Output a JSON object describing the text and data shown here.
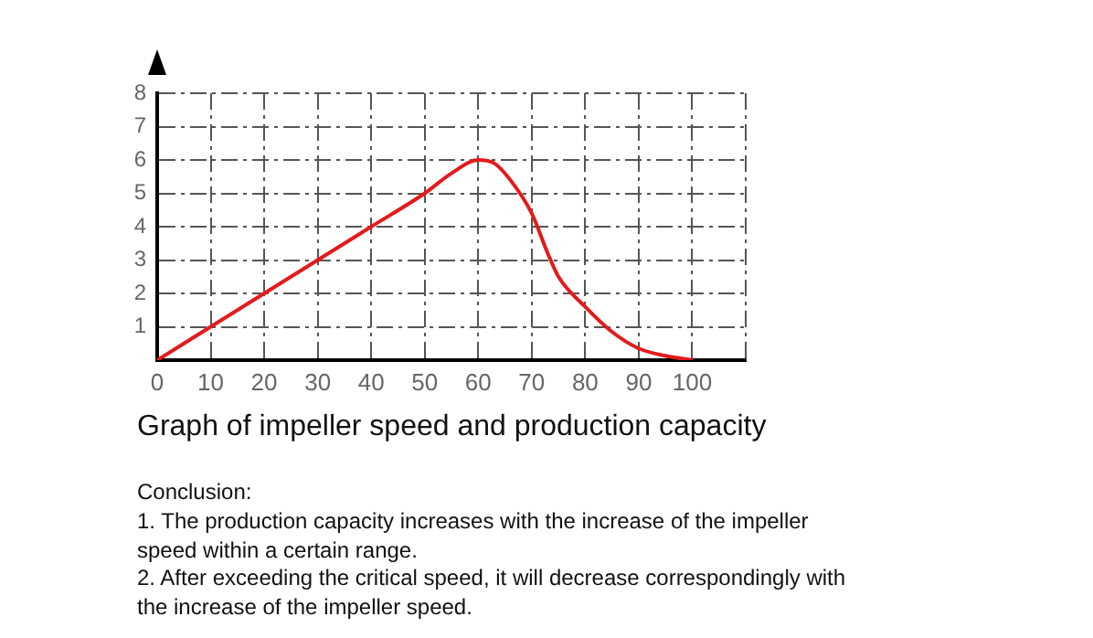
{
  "chart_data": {
    "type": "line",
    "title": "Graph of impeller speed and production capacity",
    "annotations": [
      "Conclusion:",
      "1. The production capacity increases with the increase of the impeller speed within a certain range.",
      "2. After exceeding the critical speed, it will decrease correspondingly with the increase of the impeller speed."
    ],
    "x": [
      0,
      10,
      20,
      30,
      40,
      50,
      55,
      60,
      63,
      66,
      70,
      73,
      75,
      80,
      85,
      90,
      95,
      100
    ],
    "series": [
      {
        "color": "#e31a1c",
        "values": [
          0,
          1,
          2,
          3,
          4,
          5,
          5.6,
          6,
          5.9,
          5.4,
          4.4,
          3.2,
          2.5,
          1.6,
          0.85,
          0.35,
          0.13,
          0
        ]
      }
    ],
    "xlim": [
      0,
      110
    ],
    "xticks": [
      0,
      10,
      20,
      30,
      40,
      50,
      60,
      70,
      80,
      90,
      100,
      {
        "value": 110,
        "label": null
      }
    ],
    "ylim": [
      0,
      8
    ],
    "yticks": [
      1,
      2,
      3,
      4,
      5,
      6,
      7,
      8
    ],
    "grid": true,
    "legend": false,
    "marker": "none",
    "line_style": "solid"
  }
}
